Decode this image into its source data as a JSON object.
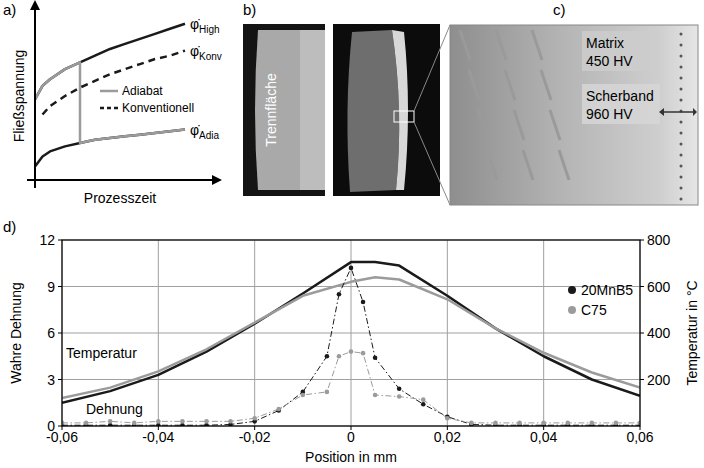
{
  "chart_data": [
    {
      "type": "line",
      "label": "a)",
      "xlabel": "Prozesszeit",
      "ylabel": "Fließspannung",
      "tick_labels": false,
      "legend": "center",
      "xlim": [
        0,
        10
      ],
      "ylim": [
        0,
        10
      ],
      "x": [
        0,
        0.5,
        1,
        2,
        3,
        3,
        4,
        5,
        6,
        7,
        8,
        9,
        10
      ],
      "series": [
        {
          "label": "φ̇",
          "label_sub": "High",
          "color": "#1a1a1a",
          "line_style": "solid",
          "values": [
            4.8,
            5.6,
            6.0,
            6.6,
            7.0,
            7.0,
            7.4,
            7.8,
            8.1,
            8.4,
            8.7,
            9.0,
            9.3
          ]
        },
        {
          "label": "φ̇",
          "label_sub": "Adia",
          "color": "#1a1a1a",
          "line_style": "solid",
          "values": [
            0.8,
            1.4,
            1.7,
            2.0,
            2.2,
            2.2,
            2.4,
            2.5,
            2.6,
            2.7,
            2.8,
            2.9,
            3.0
          ]
        },
        {
          "name": "Adiabat",
          "color": "#9b9b9b",
          "line_style": "solid",
          "values": [
            4.8,
            5.6,
            6.0,
            6.6,
            7.0,
            2.2,
            2.4,
            2.5,
            2.6,
            2.7,
            2.8,
            2.9,
            3.0
          ]
        },
        {
          "name": "Konventionell",
          "label": "φ̇",
          "label_sub": "Konv",
          "color": "#1a1a1a",
          "line_style": "dashed",
          "values": [
            null,
            3.9,
            4.4,
            5.0,
            5.5,
            5.5,
            5.9,
            6.3,
            6.6,
            6.9,
            7.2,
            7.4,
            7.7
          ]
        }
      ]
    },
    {
      "type": "line",
      "label": "d)",
      "xlabel": "Position in mm",
      "ylabel": "Wahre Dehnung",
      "y2label": "Temperatur in °C",
      "grid": true,
      "legend": "right",
      "annotations": [
        "Temperatur",
        "Dehnung"
      ],
      "xlim": [
        -0.06,
        0.06
      ],
      "xticks": [
        {
          "value": -0.06,
          "label": "-0,06"
        },
        {
          "value": -0.04,
          "label": "-0,04"
        },
        {
          "value": -0.02,
          "label": "-0,02"
        },
        0,
        {
          "value": 0.02,
          "label": "0,02"
        },
        {
          "value": 0.04,
          "label": "0,04"
        },
        {
          "value": 0.06,
          "label": "0,06"
        }
      ],
      "ylim": [
        0,
        12
      ],
      "yticks": [
        0,
        3,
        6,
        9,
        12
      ],
      "y2lim": [
        0,
        800
      ],
      "y2ticks": [
        200,
        400,
        600,
        800
      ],
      "series": [
        {
          "color": "#1a1a1a",
          "axis": "y2",
          "line_style": "solid",
          "x": [
            -0.06,
            -0.05,
            -0.04,
            -0.03,
            -0.02,
            -0.01,
            0,
            0.005,
            0.01,
            0.02,
            0.03,
            0.04,
            0.05,
            0.06
          ],
          "values": [
            100,
            150,
            220,
            320,
            440,
            570,
            705,
            705,
            690,
            560,
            420,
            300,
            200,
            130
          ]
        },
        {
          "color": "#9b9b9b",
          "axis": "y2",
          "line_style": "solid",
          "x": [
            -0.06,
            -0.05,
            -0.04,
            -0.03,
            -0.02,
            -0.01,
            0,
            0.005,
            0.01,
            0.02,
            0.03,
            0.04,
            0.05,
            0.06
          ],
          "values": [
            120,
            165,
            235,
            330,
            445,
            560,
            620,
            640,
            630,
            545,
            420,
            315,
            230,
            165
          ]
        },
        {
          "name": "20MnB5",
          "color": "#1a1a1a",
          "marker": "circle",
          "line_style": "dashdot",
          "x": [
            -0.06,
            -0.055,
            -0.05,
            -0.045,
            -0.04,
            -0.035,
            -0.03,
            -0.025,
            -0.02,
            -0.015,
            -0.01,
            -0.005,
            -0.0025,
            0,
            0.0025,
            0.005,
            0.01,
            0.015,
            0.02,
            0.025,
            0.03,
            0.035,
            0.04,
            0.045,
            0.05,
            0.055,
            0.06
          ],
          "values": [
            0.05,
            0.05,
            0.05,
            0.05,
            0.05,
            0.05,
            0.05,
            0.1,
            0.3,
            1.0,
            2.2,
            4.5,
            8.5,
            10.2,
            8.0,
            4.4,
            2.4,
            1.4,
            0.6,
            0.1,
            0.05,
            0.05,
            0.05,
            0.05,
            0.05,
            0.05,
            0.05
          ]
        },
        {
          "name": "C75",
          "color": "#9b9b9b",
          "marker": "circle",
          "line_style": "dashdot",
          "x": [
            -0.06,
            -0.055,
            -0.05,
            -0.045,
            -0.04,
            -0.035,
            -0.03,
            -0.025,
            -0.02,
            -0.015,
            -0.01,
            -0.005,
            -0.0025,
            0,
            0.0025,
            0.005,
            0.01,
            0.015,
            0.02,
            0.025,
            0.03,
            0.035,
            0.04,
            0.045,
            0.05,
            0.055,
            0.06
          ],
          "values": [
            0.2,
            0.2,
            0.3,
            0.2,
            0.3,
            0.3,
            0.3,
            0.3,
            0.5,
            1.1,
            2.0,
            2.2,
            4.5,
            4.8,
            4.7,
            2.0,
            1.9,
            1.7,
            0.5,
            0.2,
            0.2,
            0.2,
            0.2,
            0.2,
            0.2,
            0.2,
            0.2
          ]
        }
      ]
    }
  ],
  "images": [
    {
      "label": "b)",
      "texts": [
        "Trennfläche"
      ]
    },
    {
      "label": "c)",
      "texts": [
        "Matrix",
        "450 HV",
        "Scherband",
        "960 HV"
      ]
    }
  ]
}
